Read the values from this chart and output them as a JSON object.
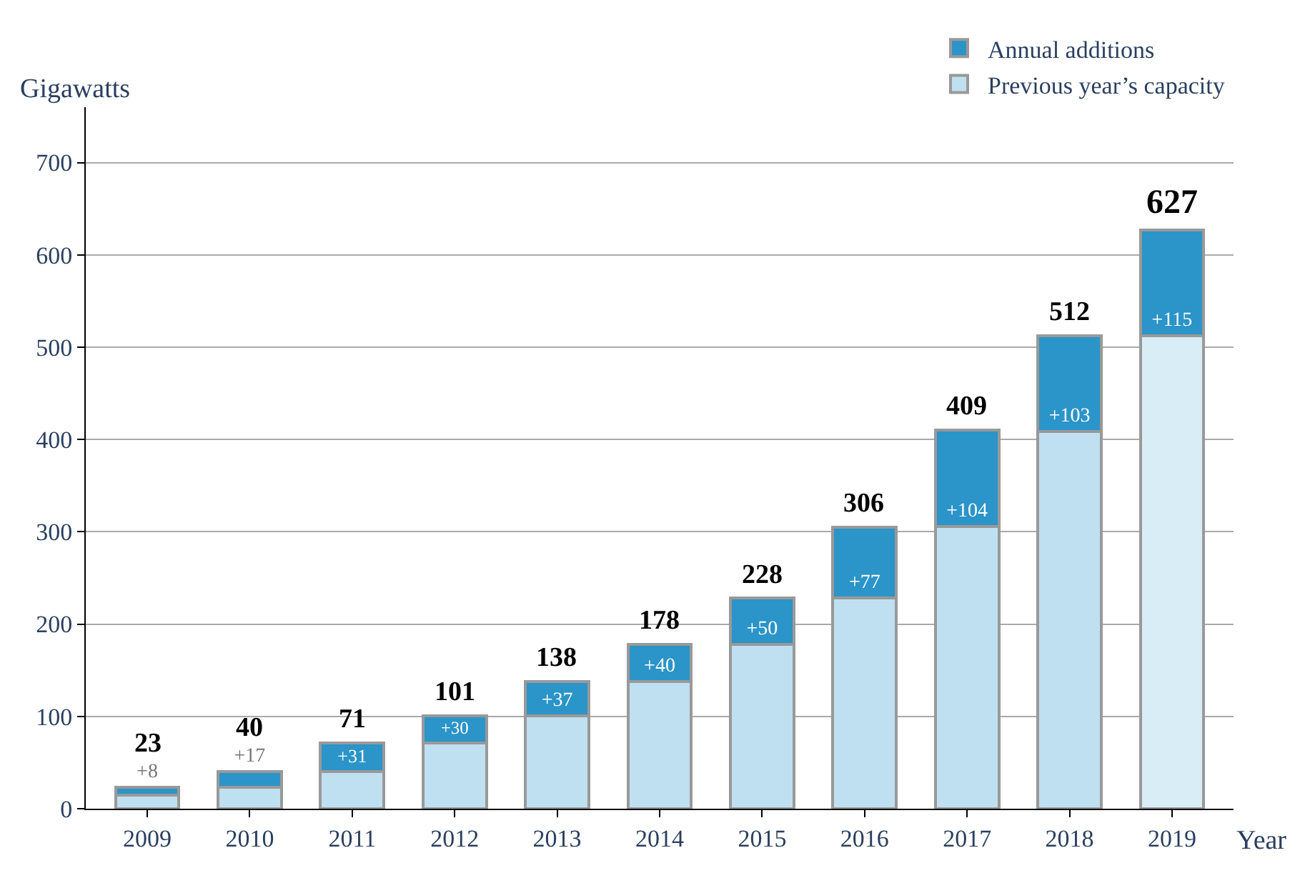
{
  "chart_data": {
    "type": "bar",
    "stacked": true,
    "xlabel": "Year",
    "ylabel": "Gigawatts",
    "categories": [
      "2009",
      "2010",
      "2011",
      "2012",
      "2013",
      "2014",
      "2015",
      "2016",
      "2017",
      "2018",
      "2019"
    ],
    "series": [
      {
        "name": "Previous year’s capacity",
        "colors": [
          "#bfe0f0",
          "#bfe0f0",
          "#bfe0f0",
          "#bfe0f0",
          "#bfe0f0",
          "#bfe0f0",
          "#bfe0f0",
          "#bfe0f0",
          "#bfe0f0",
          "#bfe0f0",
          "#d9edf7"
        ],
        "values": [
          15,
          23,
          40,
          71,
          101,
          138,
          178,
          228,
          306,
          409,
          512
        ]
      },
      {
        "name": "Annual additions",
        "color": "#2b94c8",
        "values": [
          8,
          17,
          31,
          30,
          37,
          40,
          50,
          77,
          104,
          103,
          115
        ],
        "value_labels": [
          "+8",
          "+17",
          "+31",
          "+30",
          "+37",
          "+40",
          "+50",
          "+77",
          "+104",
          "+103",
          "+115"
        ]
      }
    ],
    "totals": [
      "23",
      "40",
      "71",
      "101",
      "138",
      "178",
      "228",
      "306",
      "409",
      "512",
      "627"
    ],
    "ylim": [
      0,
      760
    ],
    "yticks": [
      0,
      100,
      200,
      300,
      400,
      500,
      600,
      700
    ],
    "grid": "y",
    "legend": "top right"
  }
}
